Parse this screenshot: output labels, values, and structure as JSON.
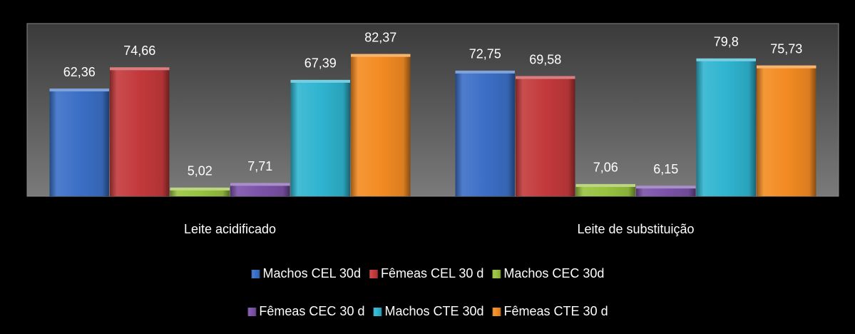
{
  "chart_data": {
    "type": "bar",
    "categories": [
      "Leite acidificado",
      "Leite de substituição"
    ],
    "ylim": [
      0,
      100
    ],
    "legend": "bottom",
    "series": [
      {
        "name": "Machos CEL 30d",
        "color": "#3b6fc6",
        "values": [
          62.36,
          72.75
        ],
        "value_labels": [
          "62,36",
          "72,75"
        ]
      },
      {
        "name": "Fêmeas CEL 30 d",
        "color": "#c3393b",
        "values": [
          74.66,
          69.58
        ],
        "value_labels": [
          "74,66",
          "69,58"
        ]
      },
      {
        "name": "Machos CEC 30d",
        "color": "#98c23f",
        "values": [
          5.02,
          7.06
        ],
        "value_labels": [
          "5,02",
          "7,06"
        ]
      },
      {
        "name": "Fêmeas CEC 30 d",
        "color": "#7b52a9",
        "values": [
          7.71,
          6.15
        ],
        "value_labels": [
          "7,71",
          "6,15"
        ]
      },
      {
        "name": "Machos CTE 30d",
        "color": "#2fb4d0",
        "values": [
          67.39,
          79.8
        ],
        "value_labels": [
          "67,39",
          "79,8"
        ]
      },
      {
        "name": "Fêmeas CTE 30 d",
        "color": "#f38b22",
        "values": [
          82.37,
          75.73
        ],
        "value_labels": [
          "82,37",
          "75,73"
        ]
      }
    ]
  }
}
